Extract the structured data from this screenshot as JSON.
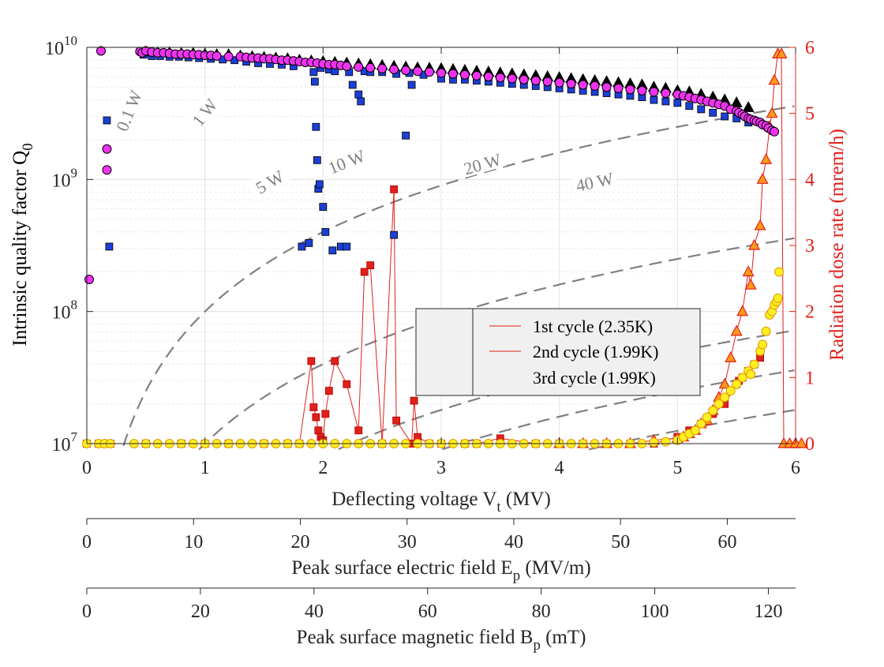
{
  "chart_data": {
    "type": "scatter",
    "title": "",
    "xlabel": "Deflecting voltage V",
    "xlabel_sub": "t",
    "xlabel_unit": " (MV)",
    "ylabel_left": "Intrinsic quality factor Q",
    "ylabel_left_sub": "0",
    "ylabel_right": "Radiation dose rate (mrem/h)",
    "xlim": [
      0,
      6
    ],
    "ylim_left": [
      10000000,
      10000000000
    ],
    "ylim_left_scale": "log",
    "ylim_right": [
      0,
      6
    ],
    "x_ticks": [
      "0",
      "1",
      "2",
      "3",
      "4",
      "5",
      "6"
    ],
    "y_left_ticks": [
      {
        "value": 10000000,
        "mant": "10",
        "exp": "7"
      },
      {
        "value": 100000000,
        "mant": "10",
        "exp": "8"
      },
      {
        "value": 1000000000,
        "mant": "10",
        "exp": "9"
      },
      {
        "value": 10000000000,
        "mant": "10",
        "exp": "10"
      }
    ],
    "y_right_ticks": [
      "0",
      "1",
      "2",
      "3",
      "4",
      "5",
      "6"
    ],
    "secondary_axes": [
      {
        "label": "Peak surface electric field E",
        "label_sub": "p",
        "label_unit": " (MV/m)",
        "range": [
          0,
          66.4
        ],
        "ticks": [
          "0",
          "10",
          "20",
          "30",
          "40",
          "50",
          "60"
        ]
      },
      {
        "label": "Peak surface magnetic field B",
        "label_sub": "p",
        "label_unit": " (mT)",
        "range": [
          0,
          124.8
        ],
        "ticks": [
          "0",
          "20",
          "40",
          "60",
          "80",
          "100",
          "120"
        ]
      }
    ],
    "power_contours": [
      {
        "label": "0.1 W",
        "k": 0.00025
      },
      {
        "label": "1 W",
        "k": 0.0025
      },
      {
        "label": "5 W",
        "k": 0.0125
      },
      {
        "label": "10 W",
        "k": 0.025
      },
      {
        "label": "20 W",
        "k": 0.05
      },
      {
        "label": "40 W",
        "k": 0.1
      }
    ],
    "legend": {
      "position": "center-right",
      "q0_title": "",
      "entries": [
        "1st cycle (2.35K)",
        "2nd cycle (1.99K)",
        "3rd cycle (1.99K)"
      ]
    },
    "series": [
      {
        "name": "1st cycle Q0",
        "axis": "left",
        "marker": "square",
        "color": "#1c3fd6",
        "x": [
          0.17,
          0.19,
          0.48,
          0.55,
          0.62,
          0.7,
          0.78,
          0.86,
          0.95,
          1.05,
          1.15,
          1.25,
          1.35,
          1.45,
          1.55,
          1.65,
          1.75,
          1.82,
          1.88,
          1.92,
          1.93,
          1.94,
          1.95,
          1.96,
          1.97,
          1.98,
          2.0,
          2.02,
          2.05,
          2.08,
          2.1,
          2.15,
          2.2,
          2.22,
          2.25,
          2.3,
          2.32,
          2.35,
          2.4,
          2.5,
          2.6,
          2.62,
          2.7,
          2.73,
          2.75,
          2.85,
          3.0,
          3.1,
          3.2,
          3.3,
          3.4,
          3.5,
          3.6,
          3.7,
          3.8,
          3.9,
          4.0,
          4.1,
          4.2,
          4.3,
          4.4,
          4.5,
          4.6,
          4.7,
          4.8,
          4.9,
          5.0,
          5.1,
          5.2,
          5.3,
          5.4,
          5.5,
          5.6
        ],
        "y": [
          2800000000.0,
          310000000.0,
          8800000000.0,
          8600000000.0,
          8600000000.0,
          8500000000.0,
          8500000000.0,
          8400000000.0,
          8300000000.0,
          8200000000.0,
          8100000000.0,
          8000000000.0,
          7800000000.0,
          7600000000.0,
          7500000000.0,
          7400000000.0,
          7200000000.0,
          310000000.0,
          330000000.0,
          6500000000.0,
          5500000000.0,
          2500000000.0,
          1400000000.0,
          850000000.0,
          920000000.0,
          7000000000.0,
          620000000.0,
          400000000.0,
          6800000000.0,
          290000000.0,
          6600000000.0,
          310000000.0,
          310000000.0,
          6500000000.0,
          5200000000.0,
          4400000000.0,
          3900000000.0,
          6600000000.0,
          6500000000.0,
          6500000000.0,
          380000000.0,
          6300000000.0,
          2150000000.0,
          6400000000.0,
          5200000000.0,
          6200000000.0,
          5800000000.0,
          5700000000.0,
          5700000000.0,
          5600000000.0,
          5500000000.0,
          5400000000.0,
          5300000000.0,
          5200000000.0,
          5100000000.0,
          5000000000.0,
          4900000000.0,
          4800000000.0,
          4700000000.0,
          4600000000.0,
          4500000000.0,
          4400000000.0,
          4300000000.0,
          4200000000.0,
          4000000000.0,
          3900000000.0,
          3800000000.0,
          3600000000.0,
          3400000000.0,
          3200000000.0,
          3000000000.0,
          2900000000.0,
          2700000000.0
        ]
      },
      {
        "name": "2nd cycle Q0",
        "axis": "left",
        "marker": "triangle",
        "color": "#000000",
        "x": [
          0.5,
          0.6,
          0.7,
          0.8,
          0.9,
          1.0,
          1.1,
          1.2,
          1.3,
          1.4,
          1.5,
          1.6,
          1.7,
          1.8,
          1.9,
          2.0,
          2.1,
          2.2,
          2.3,
          2.4,
          2.5,
          2.6,
          2.7,
          2.8,
          2.9,
          3.0,
          3.1,
          3.2,
          3.3,
          3.4,
          3.5,
          3.6,
          3.7,
          3.8,
          3.9,
          4.0,
          4.1,
          4.2,
          4.3,
          4.4,
          4.5,
          4.6,
          4.7,
          4.8,
          4.9,
          5.0,
          5.1,
          5.2,
          5.3,
          5.4,
          5.5,
          5.6
        ],
        "y": [
          9200000000.0,
          9100000000.0,
          9100000000.0,
          9000000000.0,
          9000000000.0,
          8900000000.0,
          8800000000.0,
          8800000000.0,
          8600000000.0,
          8500000000.0,
          8400000000.0,
          8300000000.0,
          8200000000.0,
          8000000000.0,
          7900000000.0,
          7800000000.0,
          7700000000.0,
          7600000000.0,
          7500000000.0,
          7400000000.0,
          7300000000.0,
          7200000000.0,
          7100000000.0,
          7000000000.0,
          6950000000.0,
          6900000000.0,
          6800000000.0,
          6700000000.0,
          6600000000.0,
          6500000000.0,
          6400000000.0,
          6300000000.0,
          6200000000.0,
          6100000000.0,
          6000000000.0,
          5900000000.0,
          5800000000.0,
          5700000000.0,
          5600000000.0,
          5500000000.0,
          5400000000.0,
          5300000000.0,
          5200000000.0,
          5000000000.0,
          4900000000.0,
          4700000000.0,
          4600000000.0,
          4400000000.0,
          4200000000.0,
          4000000000.0,
          3800000000.0,
          3500000000.0
        ]
      },
      {
        "name": "3rd cycle Q0",
        "axis": "left",
        "marker": "circle",
        "color": "#ee33ee",
        "x": [
          0.02,
          0.12,
          0.17,
          0.17,
          0.45,
          0.47,
          0.5,
          0.55,
          0.6,
          0.65,
          0.7,
          0.75,
          0.8,
          0.85,
          0.9,
          0.95,
          1.0,
          1.05,
          1.1,
          1.2,
          1.3,
          1.35,
          1.4,
          1.45,
          1.5,
          1.55,
          1.6,
          1.65,
          1.7,
          1.75,
          1.8,
          1.85,
          1.9,
          1.95,
          2.0,
          2.05,
          2.1,
          2.15,
          2.2,
          2.3,
          2.4,
          2.5,
          2.6,
          2.7,
          2.8,
          2.9,
          3.0,
          3.1,
          3.2,
          3.3,
          3.4,
          3.5,
          3.6,
          3.7,
          3.8,
          3.9,
          4.0,
          4.1,
          4.2,
          4.3,
          4.4,
          4.5,
          4.6,
          4.7,
          4.8,
          4.9,
          5.0,
          5.05,
          5.1,
          5.15,
          5.2,
          5.25,
          5.3,
          5.35,
          5.4,
          5.45,
          5.5,
          5.52,
          5.55,
          5.57,
          5.6,
          5.62,
          5.65,
          5.67,
          5.7,
          5.72,
          5.75,
          5.77,
          5.8,
          5.82
        ],
        "y": [
          175000000.0,
          9400000000.0,
          1700000000.0,
          1180000000.0,
          9300000000.0,
          9100000000.0,
          9400000000.0,
          9200000000.0,
          9100000000.0,
          9100000000.0,
          9000000000.0,
          8900000000.0,
          8900000000.0,
          8900000000.0,
          8800000000.0,
          8800000000.0,
          8700000000.0,
          8700000000.0,
          8600000000.0,
          8500000000.0,
          8500000000.0,
          8400000000.0,
          8300000000.0,
          8300000000.0,
          8200000000.0,
          8200000000.0,
          8100000000.0,
          8000000000.0,
          8000000000.0,
          7900000000.0,
          7800000000.0,
          7700000000.0,
          7700000000.0,
          7600000000.0,
          7500000000.0,
          7400000000.0,
          7400000000.0,
          7300000000.0,
          7200000000.0,
          7100000000.0,
          7000000000.0,
          6900000000.0,
          6800000000.0,
          6700000000.0,
          6600000000.0,
          6500000000.0,
          6400000000.0,
          6300000000.0,
          6200000000.0,
          6100000000.0,
          6000000000.0,
          5900000000.0,
          5800000000.0,
          5700000000.0,
          5600000000.0,
          5500000000.0,
          5400000000.0,
          5300000000.0,
          5200000000.0,
          5100000000.0,
          5000000000.0,
          4900000000.0,
          4800000000.0,
          4700000000.0,
          4600000000.0,
          4500000000.0,
          4400000000.0,
          4300000000.0,
          4200000000.0,
          4100000000.0,
          4000000000.0,
          3900000000.0,
          3800000000.0,
          3700000000.0,
          3600000000.0,
          3400000000.0,
          3300000000.0,
          3200000000.0,
          3100000000.0,
          3000000000.0,
          2900000000.0,
          2850000000.0,
          2800000000.0,
          2750000000.0,
          2700000000.0,
          2600000000.0,
          2550000000.0,
          2450000000.0,
          2350000000.0,
          2300000000.0
        ]
      },
      {
        "name": "1st cycle (2.35K)",
        "axis": "right",
        "marker": "square",
        "color": "#e0201a",
        "line": true,
        "x": [
          0.0,
          0.1,
          0.2,
          0.5,
          0.8,
          1.0,
          1.2,
          1.5,
          1.7,
          1.8,
          1.9,
          1.92,
          1.94,
          1.96,
          1.98,
          2.0,
          2.02,
          2.05,
          2.1,
          2.2,
          2.3,
          2.35,
          2.4,
          2.5,
          2.6,
          2.62,
          2.75,
          2.77,
          2.8,
          2.9,
          3.0,
          3.2,
          3.3,
          3.5,
          3.8,
          4.0,
          4.2,
          4.4,
          4.6,
          4.8,
          5.0,
          5.1,
          5.2,
          5.3,
          5.4,
          5.5,
          5.52,
          5.55,
          5.6,
          5.65,
          5.7
        ],
        "y": [
          0,
          0,
          0,
          0,
          0,
          0,
          0,
          0,
          0,
          0,
          1.25,
          0.55,
          0.4,
          0.2,
          0.1,
          0.05,
          0.45,
          0.8,
          1.25,
          0.9,
          0.2,
          2.6,
          2.7,
          0,
          3.85,
          0.35,
          0,
          0.65,
          0.1,
          0,
          0,
          0,
          0,
          0.08,
          0,
          0,
          0,
          0,
          0,
          0,
          0.1,
          0.2,
          0.3,
          0.45,
          0.6,
          0.9,
          0.95,
          1.0,
          1.1,
          1.2,
          1.3
        ]
      },
      {
        "name": "2nd cycle (1.99K)",
        "axis": "right",
        "marker": "triangle",
        "color": "#e0201a",
        "fill": "#ff9a1a",
        "line": true,
        "x": [
          4.0,
          4.2,
          4.4,
          4.6,
          4.8,
          5.0,
          5.05,
          5.1,
          5.15,
          5.2,
          5.25,
          5.3,
          5.35,
          5.4,
          5.45,
          5.5,
          5.55,
          5.6,
          5.62,
          5.65,
          5.7,
          5.72,
          5.75,
          5.78,
          5.8,
          5.82,
          5.85,
          5.88,
          5.9,
          5.95,
          6.0,
          6.0,
          6.05
        ],
        "y": [
          0,
          0,
          0,
          0,
          0.05,
          0.08,
          0.1,
          0.15,
          0.2,
          0.3,
          0.35,
          0.5,
          0.7,
          0.9,
          1.3,
          1.7,
          2.0,
          2.6,
          2.4,
          3.0,
          3.3,
          4.0,
          4.3,
          4.8,
          5.0,
          5.5,
          5.9,
          5.9,
          0,
          0,
          0,
          0,
          0
        ]
      },
      {
        "name": "3rd cycle (1.99K)",
        "axis": "right",
        "marker": "circle",
        "color": "#f0c000",
        "fill": "#ffee22",
        "line": false,
        "x": [
          0.0,
          0.1,
          0.15,
          0.2,
          0.4,
          0.5,
          0.6,
          0.7,
          0.8,
          0.9,
          1.0,
          1.1,
          1.2,
          1.3,
          1.4,
          1.5,
          1.6,
          1.7,
          1.8,
          1.9,
          2.0,
          2.1,
          2.2,
          2.3,
          2.4,
          2.5,
          2.6,
          2.7,
          2.8,
          2.9,
          3.0,
          3.1,
          3.2,
          3.3,
          3.4,
          3.5,
          3.6,
          3.7,
          3.8,
          3.9,
          4.0,
          4.1,
          4.2,
          4.3,
          4.4,
          4.5,
          4.6,
          4.7,
          4.8,
          4.9,
          5.0,
          5.05,
          5.1,
          5.15,
          5.2,
          5.25,
          5.3,
          5.35,
          5.4,
          5.45,
          5.5,
          5.55,
          5.6,
          5.62,
          5.65,
          5.7,
          5.72,
          5.75,
          5.78,
          5.8,
          5.82,
          5.84,
          5.85,
          5.86
        ],
        "y": [
          0,
          0,
          0,
          0,
          0,
          0,
          0,
          0,
          0,
          0,
          0,
          0,
          0,
          0,
          0,
          0,
          0,
          0,
          0,
          0,
          0,
          0,
          0,
          0,
          0,
          0,
          0,
          0,
          0,
          0,
          0,
          0,
          0,
          0,
          0,
          0,
          0,
          0,
          0,
          0,
          0,
          0,
          0,
          0,
          0,
          0,
          0,
          0,
          0.02,
          0.03,
          0.05,
          0.1,
          0.15,
          0.2,
          0.3,
          0.4,
          0.5,
          0.6,
          0.7,
          0.8,
          0.9,
          1.0,
          1.1,
          1.05,
          1.2,
          1.4,
          1.5,
          1.7,
          1.95,
          2.0,
          2.1,
          2.15,
          2.2,
          2.6
        ]
      }
    ]
  }
}
